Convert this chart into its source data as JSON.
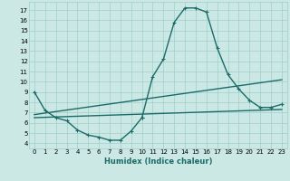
{
  "xlabel": "Humidex (Indice chaleur)",
  "xlim": [
    -0.5,
    23.5
  ],
  "ylim": [
    3.5,
    17.8
  ],
  "yticks": [
    4,
    5,
    6,
    7,
    8,
    9,
    10,
    11,
    12,
    13,
    14,
    15,
    16,
    17
  ],
  "xticks": [
    0,
    1,
    2,
    3,
    4,
    5,
    6,
    7,
    8,
    9,
    10,
    11,
    12,
    13,
    14,
    15,
    16,
    17,
    18,
    19,
    20,
    21,
    22,
    23
  ],
  "bg_color": "#cce8e4",
  "grid_color": "#9fcfca",
  "line_color": "#1a6b68",
  "line_width": 1.0,
  "lines": [
    {
      "x": [
        0,
        1,
        2,
        3,
        4,
        5,
        6,
        7,
        8,
        9,
        10
      ],
      "y": [
        9.0,
        7.2,
        6.5,
        6.2,
        5.3,
        4.8,
        4.6,
        4.3,
        4.3,
        5.2,
        6.5
      ],
      "marker": true
    },
    {
      "x": [
        10,
        11,
        12,
        13,
        14,
        15,
        16,
        17,
        18,
        19,
        20,
        21,
        22,
        23
      ],
      "y": [
        6.5,
        10.5,
        12.2,
        15.8,
        17.2,
        17.2,
        16.8,
        13.3,
        10.7,
        9.3,
        8.2,
        7.5,
        7.5,
        7.8
      ],
      "marker": true
    },
    {
      "x": [
        0,
        23
      ],
      "y": [
        6.5,
        7.3
      ],
      "marker": false
    },
    {
      "x": [
        0,
        23
      ],
      "y": [
        6.8,
        10.2
      ],
      "marker": false
    }
  ]
}
